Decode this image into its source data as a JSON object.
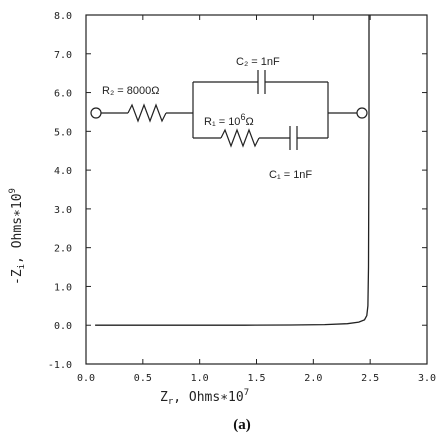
{
  "chart_data": {
    "type": "line",
    "title": "",
    "xlabel": {
      "main": "Z",
      "sub": "r",
      "rest": ",   Ohms",
      "mult": "∗",
      "base": "10",
      "exp": "7"
    },
    "ylabel": {
      "main": "-Z",
      "sub": "i",
      "rest": ",   Ohms",
      "mult": "∗",
      "base": "10",
      "exp": "9"
    },
    "xlim": [
      0.0,
      3.0
    ],
    "ylim": [
      -1.0,
      8.0
    ],
    "x_ticks": [
      0.0,
      0.5,
      1.0,
      1.5,
      2.0,
      2.5,
      3.0
    ],
    "x_tick_labels": [
      "0.0",
      "0.5",
      "1.0",
      "1.5",
      "2.0",
      "2.5",
      "3.0"
    ],
    "y_ticks": [
      -1.0,
      0.0,
      1.0,
      2.0,
      3.0,
      4.0,
      5.0,
      6.0,
      7.0,
      8.0
    ],
    "y_tick_labels": [
      "-1.0",
      "0.0",
      "1.0",
      "2.0",
      "3.0",
      "4.0",
      "5.0",
      "6.0",
      "7.0",
      "8.0"
    ],
    "grid": false,
    "panel_label": "(a)",
    "series": [
      {
        "x": [
          0.08,
          0.3,
          0.6,
          1.0,
          1.4,
          1.8,
          2.1,
          2.3,
          2.4,
          2.45,
          2.47,
          2.48,
          2.485,
          2.49,
          2.49
        ],
        "y": [
          0.0,
          0.0,
          0.0,
          0.0,
          0.0,
          0.005,
          0.015,
          0.04,
          0.08,
          0.14,
          0.25,
          0.5,
          1.5,
          5.0,
          8.0
        ]
      }
    ],
    "circuit": {
      "r2_label": "R₂ = 8000Ω",
      "c2_label": "C₂ = 1nF",
      "r1_label_prefix": "R₁ = 10",
      "r1_label_exp": "6",
      "r1_label_unit": "Ω",
      "c1_label": "C₁ = 1nF"
    }
  }
}
